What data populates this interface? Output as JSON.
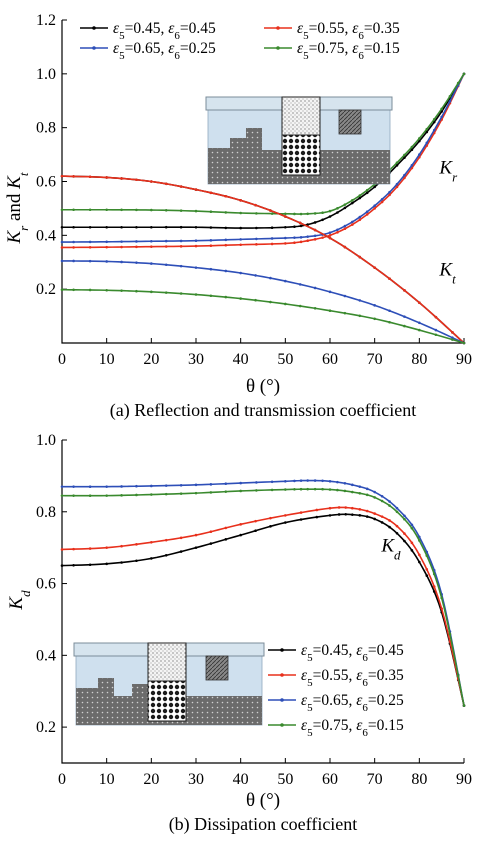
{
  "chart_data": [
    {
      "type": "line",
      "caption": "(a) Reflection and transmission coefficient",
      "xlabel": "θ (°)",
      "ylabel": "Kr and Kt",
      "xlim": [
        0,
        90
      ],
      "ylim": [
        0,
        1.2
      ],
      "xticks": [
        "0",
        "10",
        "20",
        "30",
        "40",
        "50",
        "60",
        "70",
        "80",
        "90"
      ],
      "yticks": [
        "0.2",
        "0.4",
        "0.6",
        "0.8",
        "1.0",
        "1.2"
      ],
      "legend_position": "top",
      "annotations": [
        {
          "text": "Kr",
          "main": "K",
          "sub": "r",
          "x": 84.5,
          "y": 0.63
        },
        {
          "text": "Kt",
          "main": "K",
          "sub": "t",
          "x": 84.5,
          "y": 0.25
        }
      ],
      "series": [
        {
          "name": "ε5=0.45, ε6=0.45",
          "color": "#000000",
          "group": "Kr",
          "x": [
            0,
            10,
            20,
            30,
            40,
            50,
            55,
            60,
            65,
            70,
            75,
            80,
            85,
            90
          ],
          "y": [
            0.43,
            0.43,
            0.43,
            0.43,
            0.427,
            0.43,
            0.44,
            0.47,
            0.52,
            0.58,
            0.66,
            0.75,
            0.86,
            1.0
          ]
        },
        {
          "name": "ε5=0.55, ε6=0.35",
          "color": "#e8301c",
          "group": "Kr",
          "x": [
            0,
            10,
            20,
            30,
            40,
            50,
            55,
            60,
            65,
            70,
            75,
            80,
            85,
            90
          ],
          "y": [
            0.355,
            0.356,
            0.358,
            0.36,
            0.365,
            0.37,
            0.38,
            0.4,
            0.44,
            0.5,
            0.58,
            0.69,
            0.83,
            1.0
          ]
        },
        {
          "name": "ε5=0.65, ε6=0.25",
          "color": "#2e4fb8",
          "group": "Kr",
          "x": [
            0,
            10,
            20,
            30,
            40,
            50,
            55,
            60,
            65,
            70,
            75,
            80,
            85,
            90
          ],
          "y": [
            0.375,
            0.376,
            0.378,
            0.38,
            0.385,
            0.39,
            0.395,
            0.41,
            0.45,
            0.51,
            0.59,
            0.7,
            0.84,
            1.0
          ]
        },
        {
          "name": "ε5=0.75, ε6=0.15",
          "color": "#3a8a2e",
          "group": "Kr",
          "x": [
            0,
            10,
            20,
            30,
            40,
            50,
            55,
            60,
            65,
            70,
            75,
            80,
            85,
            90
          ],
          "y": [
            0.495,
            0.495,
            0.494,
            0.49,
            0.483,
            0.48,
            0.48,
            0.49,
            0.53,
            0.59,
            0.67,
            0.76,
            0.87,
            1.0
          ]
        },
        {
          "name": "ε5=0.45, ε6=0.45",
          "color": "#000000",
          "group": "Kt",
          "x": [
            0,
            10,
            20,
            30,
            40,
            50,
            60,
            70,
            80,
            90
          ],
          "y": [
            0.62,
            0.615,
            0.6,
            0.57,
            0.53,
            0.47,
            0.39,
            0.28,
            0.15,
            0.0
          ]
        },
        {
          "name": "ε5=0.55, ε6=0.35",
          "color": "#e8301c",
          "group": "Kt",
          "x": [
            0,
            10,
            20,
            30,
            40,
            50,
            60,
            70,
            80,
            90
          ],
          "y": [
            0.62,
            0.615,
            0.6,
            0.57,
            0.53,
            0.47,
            0.39,
            0.28,
            0.15,
            0.0
          ]
        },
        {
          "name": "ε5=0.65, ε6=0.25",
          "color": "#2e4fb8",
          "group": "Kt",
          "x": [
            0,
            10,
            20,
            30,
            40,
            50,
            60,
            70,
            80,
            90
          ],
          "y": [
            0.305,
            0.303,
            0.295,
            0.28,
            0.26,
            0.23,
            0.19,
            0.14,
            0.075,
            0.0
          ]
        },
        {
          "name": "ε5=0.75, ε6=0.15",
          "color": "#3a8a2e",
          "group": "Kt",
          "x": [
            0,
            10,
            20,
            30,
            40,
            50,
            60,
            70,
            80,
            90
          ],
          "y": [
            0.198,
            0.196,
            0.19,
            0.18,
            0.165,
            0.145,
            0.12,
            0.09,
            0.048,
            0.0
          ]
        }
      ]
    },
    {
      "type": "line",
      "caption": "(b) Dissipation coefficient",
      "xlabel": "θ (°)",
      "ylabel": "Kd",
      "xlim": [
        0,
        90
      ],
      "ylim": [
        0.1,
        1.0
      ],
      "xticks": [
        "0",
        "10",
        "20",
        "30",
        "40",
        "50",
        "60",
        "70",
        "80",
        "90"
      ],
      "yticks": [
        "0.2",
        "0.4",
        "0.6",
        "0.8",
        "1.0"
      ],
      "legend_position": "bottom-right",
      "annotations": [
        {
          "text": "Kd",
          "main": "K",
          "sub": "d",
          "x": 71.5,
          "y": 0.69
        }
      ],
      "series": [
        {
          "name": "ε5=0.45, ε6=0.45",
          "color": "#000000",
          "x": [
            0,
            10,
            20,
            30,
            40,
            50,
            60,
            65,
            70,
            75,
            80,
            85,
            90
          ],
          "y": [
            0.65,
            0.655,
            0.67,
            0.7,
            0.735,
            0.77,
            0.79,
            0.792,
            0.78,
            0.74,
            0.66,
            0.52,
            0.26
          ]
        },
        {
          "name": "ε5=0.55, ε6=0.35",
          "color": "#e8301c",
          "x": [
            0,
            10,
            20,
            30,
            40,
            50,
            60,
            65,
            70,
            75,
            80,
            85,
            90
          ],
          "y": [
            0.695,
            0.7,
            0.715,
            0.735,
            0.765,
            0.79,
            0.81,
            0.81,
            0.795,
            0.76,
            0.68,
            0.53,
            0.26
          ]
        },
        {
          "name": "ε5=0.65, ε6=0.25",
          "color": "#2e4fb8",
          "x": [
            0,
            10,
            20,
            30,
            40,
            50,
            55,
            60,
            65,
            70,
            75,
            80,
            85,
            90
          ],
          "y": [
            0.87,
            0.87,
            0.872,
            0.875,
            0.88,
            0.885,
            0.887,
            0.885,
            0.875,
            0.855,
            0.81,
            0.73,
            0.57,
            0.26
          ]
        },
        {
          "name": "ε5=0.75, ε6=0.15",
          "color": "#3a8a2e",
          "x": [
            0,
            10,
            20,
            30,
            40,
            50,
            55,
            60,
            65,
            70,
            75,
            80,
            85,
            90
          ],
          "y": [
            0.845,
            0.845,
            0.848,
            0.852,
            0.858,
            0.862,
            0.863,
            0.862,
            0.855,
            0.84,
            0.8,
            0.72,
            0.56,
            0.26
          ]
        }
      ]
    }
  ]
}
